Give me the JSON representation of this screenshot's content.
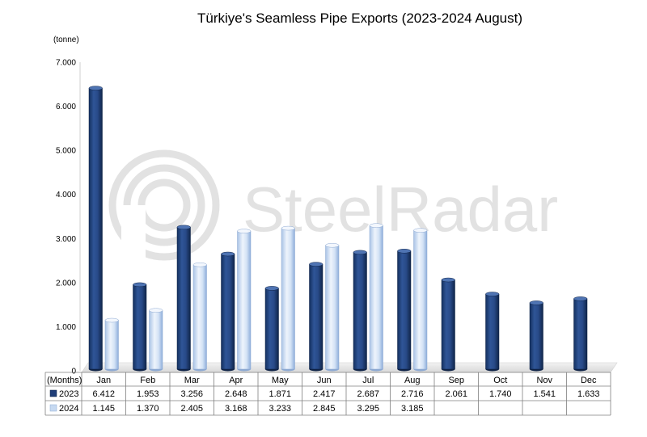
{
  "chart_data": {
    "type": "bar",
    "title": "Türkiye's Seamless Pipe Exports (2023-2024 August)",
    "unit_label": "(tonne)",
    "table_header_label": "(Months)",
    "categories": [
      "Jan",
      "Feb",
      "Mar",
      "Apr",
      "May",
      "Jun",
      "Jul",
      "Aug",
      "Sep",
      "Oct",
      "Nov",
      "Dec"
    ],
    "ylim": [
      0,
      7000
    ],
    "yticks": [
      {
        "value": 0,
        "label": "0"
      },
      {
        "value": 1000,
        "label": "1.000"
      },
      {
        "value": 2000,
        "label": "2.000"
      },
      {
        "value": 3000,
        "label": "3.000"
      },
      {
        "value": 4000,
        "label": "4.000"
      },
      {
        "value": 5000,
        "label": "5.000"
      },
      {
        "value": 6000,
        "label": "6.000"
      },
      {
        "value": 7000,
        "label": "7.000"
      }
    ],
    "series": [
      {
        "name": "2023",
        "color": "#1f3e78",
        "values": [
          6412,
          1953,
          3256,
          2648,
          1871,
          2417,
          2687,
          2716,
          2061,
          1740,
          1541,
          1633
        ],
        "labels": [
          "6.412",
          "1.953",
          "3.256",
          "2.648",
          "1.871",
          "2.417",
          "2.687",
          "2.716",
          "2.061",
          "1.740",
          "1.541",
          "1.633"
        ]
      },
      {
        "name": "2024",
        "color": "#c6d9f1",
        "values": [
          1145,
          1370,
          2405,
          3168,
          3233,
          2845,
          3295,
          3185,
          null,
          null,
          null,
          null
        ],
        "labels": [
          "1.145",
          "1.370",
          "2.405",
          "3.168",
          "3.233",
          "2.845",
          "3.295",
          "3.185",
          "",
          "",
          "",
          ""
        ]
      }
    ],
    "grid": false,
    "legend": "data-table",
    "watermark": "SteelRadar"
  }
}
